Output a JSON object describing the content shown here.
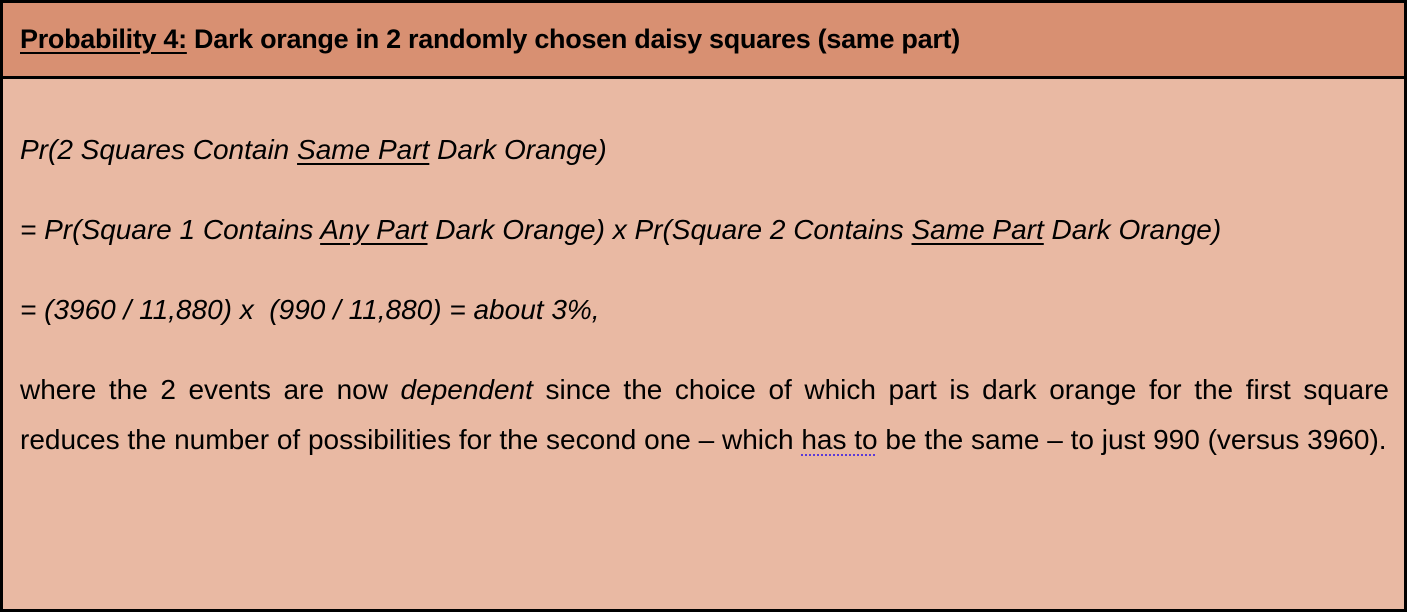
{
  "header": {
    "label": "Probability 4:",
    "title": " Dark orange in 2 randomly chosen daisy squares (same part)"
  },
  "line1": {
    "a": "Pr(2 Squares Contain ",
    "u": "Same Part",
    "b": " Dark Orange)"
  },
  "line2": {
    "a": "= Pr(Square 1 Contains ",
    "u1": "Any Part",
    "b": " Dark Orange) x Pr(Square 2 Contains ",
    "u2": "Same Part",
    "c": " Dark Orange)"
  },
  "line3": "= (3960 / 11,880) x  (990 / 11,880) = about 3%,",
  "line4": {
    "a": "where the 2 events are now ",
    "em": "dependent",
    "b": " since the choice of which part is dark orange for the first square reduces the number of possibilities for the second one – which ",
    "flagged": "has to",
    "c": " be the same – to just 990 (versus 3960)."
  },
  "colors": {
    "header_bg": "#d89072",
    "body_bg": "#e9b9a3",
    "border": "#000000"
  }
}
